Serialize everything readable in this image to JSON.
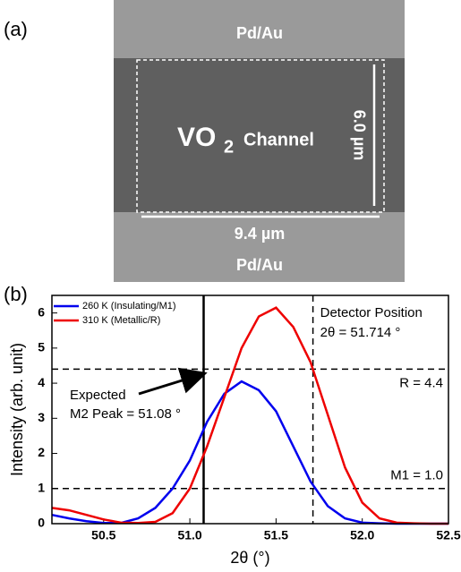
{
  "panel_labels": [
    "(a)",
    "(b)"
  ],
  "image": {
    "top_contact": "Pd/Au",
    "bottom_contact": "Pd/Au",
    "channel_formula": "VO",
    "channel_subscript": "2",
    "channel_word": "Channel",
    "height_label": "6.0 µm",
    "width_label": "9.4 µm"
  },
  "chart_data": {
    "type": "line",
    "xlabel": "2θ (°)",
    "ylabel": "Intensity (arb. unit)",
    "x": [
      50.2,
      50.3,
      50.4,
      50.5,
      50.6,
      50.7,
      50.8,
      50.9,
      51.0,
      51.1,
      51.2,
      51.3,
      51.4,
      51.5,
      51.6,
      51.7,
      51.8,
      51.9,
      52.0,
      52.1,
      52.2,
      52.3,
      52.4,
      52.5
    ],
    "series": [
      {
        "name": "260 K (Insulating/M1)",
        "color": "#0000ee",
        "values": [
          0.25,
          0.15,
          0.07,
          0.02,
          0.02,
          0.15,
          0.45,
          1.0,
          1.8,
          2.9,
          3.7,
          4.05,
          3.8,
          3.2,
          2.2,
          1.2,
          0.5,
          0.15,
          0.03,
          0.01,
          0,
          0,
          0,
          0
        ]
      },
      {
        "name": "310 K (Metallic/R)",
        "color": "#ee0000",
        "values": [
          0.45,
          0.38,
          0.25,
          0.12,
          0.03,
          0.02,
          0.05,
          0.3,
          1.0,
          2.2,
          3.6,
          5.0,
          5.9,
          6.15,
          5.6,
          4.6,
          3.1,
          1.6,
          0.6,
          0.15,
          0.03,
          0.01,
          0,
          0
        ]
      }
    ],
    "xlim": [
      50.2,
      52.5
    ],
    "xticks": [
      50.5,
      {
        "value": 51.0,
        "label": "51.0"
      },
      51.5,
      {
        "value": 52.0,
        "label": "52.0"
      },
      52.5
    ],
    "ylim": [
      0,
      6.5
    ],
    "yticks": [
      0,
      1,
      2,
      3,
      4,
      5,
      6
    ],
    "legend": "upper left",
    "reference_lines": [
      {
        "axis": "x",
        "value": 51.08,
        "style": "solid"
      },
      {
        "axis": "x",
        "value": 51.714,
        "style": "dashed"
      },
      {
        "axis": "y",
        "value": 4.4,
        "style": "dashed"
      },
      {
        "axis": "y",
        "value": 1.0,
        "style": "dashed"
      }
    ],
    "annotations": [
      "Detector Position",
      "2θ = 51.714 °",
      "R = 4.4",
      "M1 = 1.0",
      "Expected",
      "M2 Peak = 51.08 °"
    ]
  }
}
